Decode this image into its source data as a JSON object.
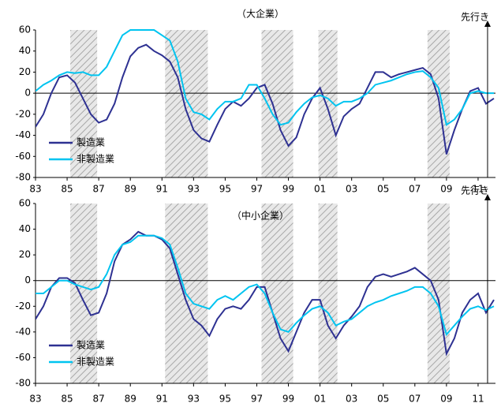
{
  "chart_data": [
    {
      "type": "line",
      "title": "（大企業）",
      "annotation": "先行き",
      "forecast_x": 2011.6,
      "x": [
        1983,
        1983.5,
        1984,
        1984.5,
        1985,
        1985.5,
        1986,
        1986.5,
        1987,
        1987.5,
        1988,
        1988.5,
        1989,
        1989.5,
        1990,
        1990.5,
        1991,
        1991.5,
        1992,
        1992.5,
        1993,
        1993.5,
        1994,
        1994.5,
        1995,
        1995.5,
        1996,
        1996.5,
        1997,
        1997.5,
        1998,
        1998.5,
        1999,
        1999.5,
        2000,
        2000.5,
        2001,
        2001.5,
        2002,
        2002.5,
        2003,
        2003.5,
        2004,
        2004.5,
        2005,
        2005.5,
        2006,
        2006.5,
        2007,
        2007.5,
        2008,
        2008.5,
        2009,
        2009.5,
        2010,
        2010.5,
        2011,
        2011.5,
        2012
      ],
      "series": [
        {
          "name": "製造業",
          "color": "#2e3192",
          "values": [
            -32,
            -20,
            0,
            15,
            17,
            10,
            -5,
            -20,
            -28,
            -25,
            -10,
            15,
            35,
            43,
            46,
            40,
            36,
            30,
            15,
            -15,
            -35,
            -43,
            -46,
            -30,
            -15,
            -8,
            -12,
            -5,
            5,
            8,
            -10,
            -35,
            -50,
            -42,
            -20,
            -5,
            5,
            -15,
            -40,
            -22,
            -15,
            -10,
            5,
            20,
            20,
            15,
            18,
            20,
            22,
            24,
            18,
            -5,
            -58,
            -35,
            -15,
            2,
            5,
            -10,
            -5
          ]
        },
        {
          "name": "非製造業",
          "color": "#00c4f0",
          "values": [
            2,
            8,
            12,
            17,
            20,
            19,
            20,
            17,
            17,
            25,
            40,
            55,
            60,
            60,
            60,
            60,
            55,
            50,
            30,
            -5,
            -18,
            -20,
            -25,
            -15,
            -8,
            -8,
            -5,
            8,
            8,
            -5,
            -20,
            -30,
            -28,
            -18,
            -10,
            -4,
            -2,
            -5,
            -12,
            -8,
            -8,
            -5,
            0,
            8,
            10,
            12,
            15,
            18,
            20,
            21,
            15,
            5,
            -30,
            -25,
            -15,
            0,
            2,
            0,
            0
          ]
        }
      ],
      "shaded": [
        [
          1985.2,
          1986.9
        ],
        [
          1991.2,
          1993.9
        ],
        [
          1997.3,
          1999.3
        ],
        [
          2000.9,
          2002.1
        ],
        [
          2007.8,
          2009.2
        ]
      ],
      "xlim": [
        1983,
        2012.1
      ],
      "ylim": [
        -80,
        60
      ],
      "xticks": [
        {
          "value": 1983,
          "label": "83"
        },
        {
          "value": 1985,
          "label": "85"
        },
        {
          "value": 1987,
          "label": "87"
        },
        {
          "value": 1989,
          "label": "89"
        },
        {
          "value": 1991,
          "label": "91"
        },
        {
          "value": 1993,
          "label": "93"
        },
        {
          "value": 1995,
          "label": "95"
        },
        {
          "value": 1997,
          "label": "97"
        },
        {
          "value": 1999,
          "label": "99"
        },
        {
          "value": 2001,
          "label": "01"
        },
        {
          "value": 2003,
          "label": "03"
        },
        {
          "value": 2005,
          "label": "05"
        },
        {
          "value": 2007,
          "label": "07"
        },
        {
          "value": 2009,
          "label": "09"
        },
        {
          "value": 2011,
          "label": "11"
        }
      ],
      "yticks": [
        -80,
        -60,
        -40,
        -20,
        0,
        20,
        40,
        60
      ],
      "legend": "lower-left"
    },
    {
      "type": "line",
      "title": "（中小企業）",
      "annotation": "先行き",
      "forecast_x": 2011.6,
      "x": [
        1983,
        1983.5,
        1984,
        1984.5,
        1985,
        1985.5,
        1986,
        1986.5,
        1987,
        1987.5,
        1988,
        1988.5,
        1989,
        1989.5,
        1990,
        1990.5,
        1991,
        1991.5,
        1992,
        1992.5,
        1993,
        1993.5,
        1994,
        1994.5,
        1995,
        1995.5,
        1996,
        1996.5,
        1997,
        1997.5,
        1998,
        1998.5,
        1999,
        1999.5,
        2000,
        2000.5,
        2001,
        2001.5,
        2002,
        2002.5,
        2003,
        2003.5,
        2004,
        2004.5,
        2005,
        2005.5,
        2006,
        2006.5,
        2007,
        2007.5,
        2008,
        2008.5,
        2009,
        2009.5,
        2010,
        2010.5,
        2011,
        2011.5,
        2012
      ],
      "series": [
        {
          "name": "製造業",
          "color": "#2e3192",
          "values": [
            -30,
            -20,
            -5,
            2,
            2,
            -2,
            -15,
            -27,
            -25,
            -10,
            15,
            28,
            32,
            38,
            35,
            35,
            32,
            25,
            5,
            -15,
            -30,
            -35,
            -43,
            -30,
            -22,
            -20,
            -22,
            -15,
            -5,
            -5,
            -25,
            -45,
            -55,
            -40,
            -25,
            -15,
            -15,
            -35,
            -45,
            -35,
            -28,
            -20,
            -5,
            3,
            5,
            3,
            5,
            7,
            10,
            5,
            0,
            -15,
            -57,
            -45,
            -25,
            -15,
            -10,
            -25,
            -15
          ]
        },
        {
          "name": "非製造業",
          "color": "#00c4f0",
          "values": [
            -10,
            -10,
            -5,
            0,
            0,
            -3,
            -5,
            -7,
            -5,
            5,
            20,
            28,
            30,
            35,
            35,
            35,
            33,
            28,
            10,
            -10,
            -18,
            -20,
            -22,
            -15,
            -12,
            -15,
            -10,
            -5,
            -3,
            -10,
            -25,
            -38,
            -40,
            -33,
            -27,
            -22,
            -20,
            -25,
            -35,
            -32,
            -30,
            -25,
            -20,
            -17,
            -15,
            -12,
            -10,
            -8,
            -5,
            -5,
            -10,
            -20,
            -42,
            -35,
            -28,
            -22,
            -20,
            -23,
            -20
          ]
        }
      ],
      "shaded": [
        [
          1985.2,
          1986.9
        ],
        [
          1991.2,
          1993.9
        ],
        [
          1997.3,
          1999.3
        ],
        [
          2000.9,
          2002.1
        ],
        [
          2007.8,
          2009.2
        ]
      ],
      "xlim": [
        1983,
        2012.1
      ],
      "ylim": [
        -80,
        60
      ],
      "xticks": [
        {
          "value": 1983,
          "label": "83"
        },
        {
          "value": 1985,
          "label": "85"
        },
        {
          "value": 1987,
          "label": "87"
        },
        {
          "value": 1989,
          "label": "89"
        },
        {
          "value": 1991,
          "label": "91"
        },
        {
          "value": 1993,
          "label": "93"
        },
        {
          "value": 1995,
          "label": "95"
        },
        {
          "value": 1997,
          "label": "97"
        },
        {
          "value": 1999,
          "label": "99"
        },
        {
          "value": 2001,
          "label": "01"
        },
        {
          "value": 2003,
          "label": "03"
        },
        {
          "value": 2005,
          "label": "05"
        },
        {
          "value": 2007,
          "label": "07"
        },
        {
          "value": 2009,
          "label": "09"
        },
        {
          "value": 2011,
          "label": "11"
        }
      ],
      "yticks": [
        -80,
        -60,
        -40,
        -20,
        0,
        20,
        40,
        60
      ],
      "legend": "lower-left"
    }
  ]
}
